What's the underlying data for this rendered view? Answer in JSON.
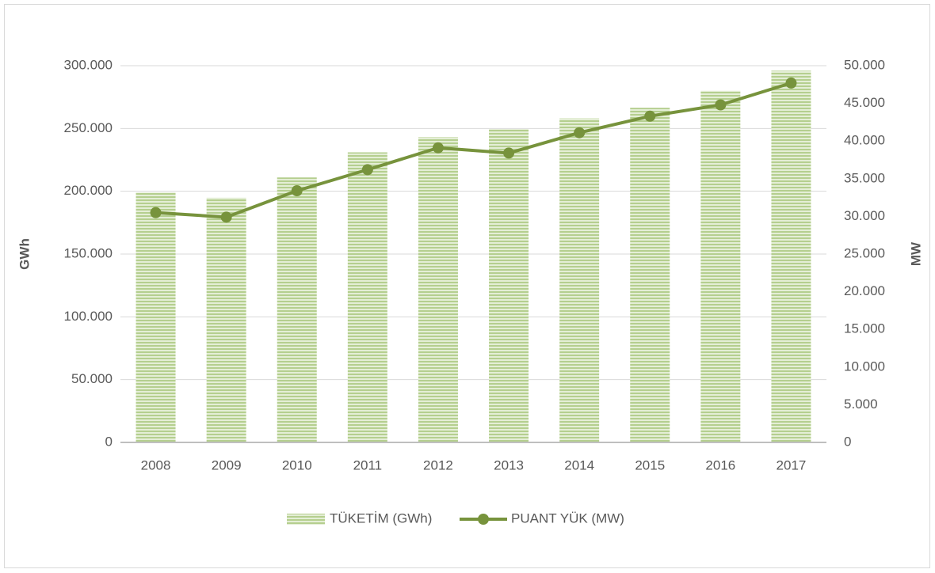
{
  "chart_data": {
    "type": "bar_line",
    "categories": [
      "2008",
      "2009",
      "2010",
      "2011",
      "2012",
      "2013",
      "2014",
      "2015",
      "2016",
      "2017"
    ],
    "series": [
      {
        "name": "TÜKETİM (GWh)",
        "type": "bar",
        "color": "#a9c77f",
        "values": [
          199000,
          194800,
          211000,
          231000,
          243000,
          249500,
          258000,
          266500,
          280000,
          296000
        ]
      },
      {
        "name": "PUANT YÜK (MW)",
        "type": "line",
        "axis": "y2",
        "color": "#77933c",
        "values": [
          30500,
          29900,
          33400,
          36200,
          39100,
          38400,
          41100,
          43300,
          44800,
          47700
        ]
      }
    ],
    "ylabel": "GWh",
    "y2label": "MW",
    "ylim": [
      0,
      300000
    ],
    "yticks": [
      0,
      {
        "value": 50000,
        "label": "50.000"
      },
      {
        "value": 100000,
        "label": "100.000"
      },
      {
        "value": 150000,
        "label": "150.000"
      },
      {
        "value": 200000,
        "label": "200.000"
      },
      {
        "value": 250000,
        "label": "250.000"
      },
      {
        "value": 300000,
        "label": "300.000"
      }
    ],
    "y2lim": [
      0,
      50000
    ],
    "y2ticks": [
      0,
      {
        "value": 5000,
        "label": "5.000"
      },
      {
        "value": 10000,
        "label": "10.000"
      },
      {
        "value": 15000,
        "label": "15.000"
      },
      {
        "value": 20000,
        "label": "20.000"
      },
      {
        "value": 25000,
        "label": "25.000"
      },
      {
        "value": 30000,
        "label": "30.000"
      },
      {
        "value": 35000,
        "label": "35.000"
      },
      {
        "value": 40000,
        "label": "40.000"
      },
      {
        "value": 45000,
        "label": "45.000"
      },
      {
        "value": 50000,
        "label": "50.000"
      }
    ],
    "grid": true,
    "legend": "bottom"
  }
}
